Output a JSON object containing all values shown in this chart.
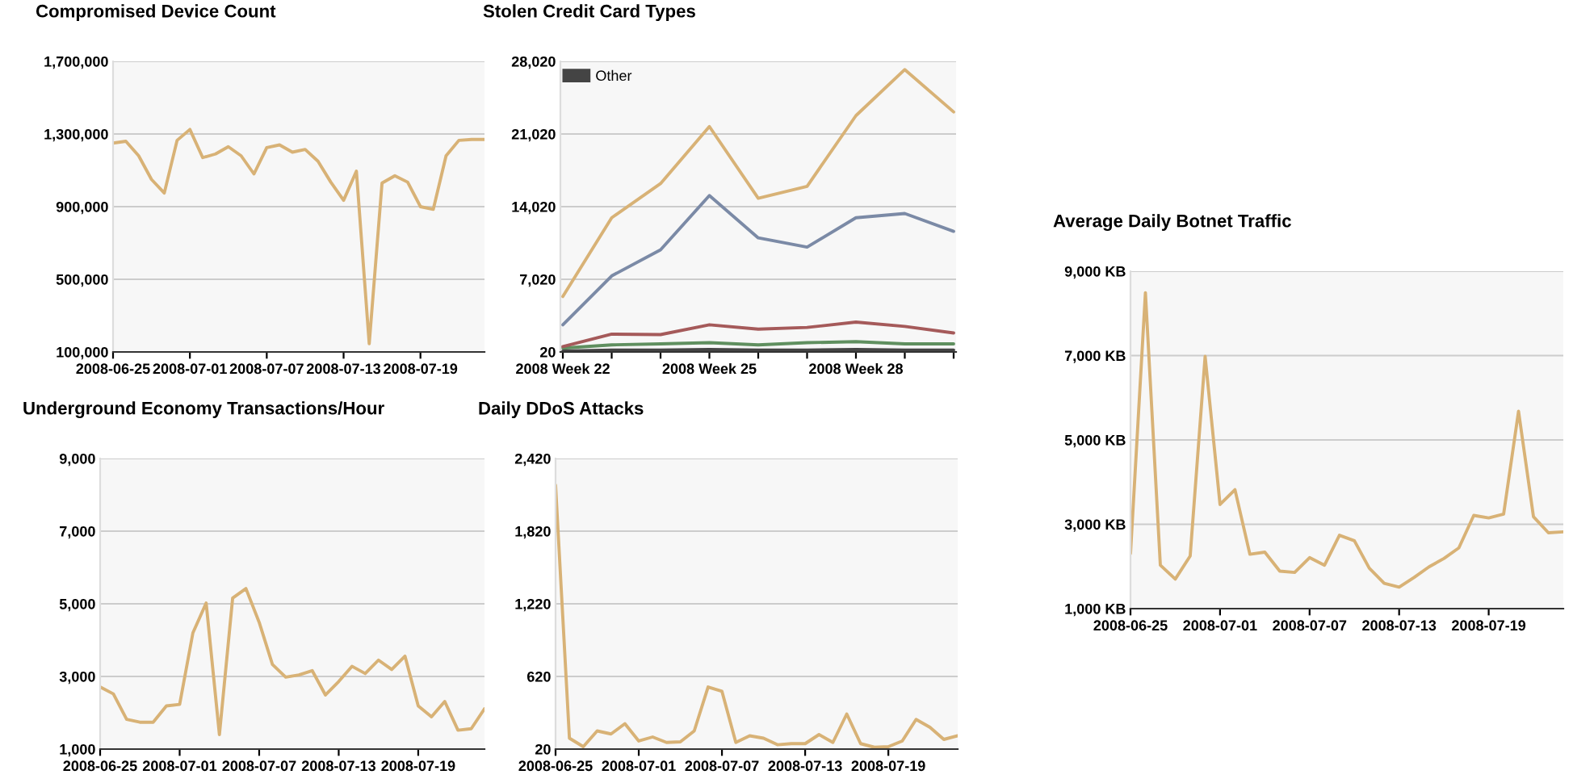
{
  "chart_data": [
    {
      "type": "line",
      "title": "Compromised Device Count",
      "x": [
        "2008-06-25",
        "2008-06-26",
        "2008-06-27",
        "2008-06-28",
        "2008-06-29",
        "2008-06-30",
        "2008-07-01",
        "2008-07-02",
        "2008-07-03",
        "2008-07-04",
        "2008-07-05",
        "2008-07-06",
        "2008-07-07",
        "2008-07-08",
        "2008-07-09",
        "2008-07-10",
        "2008-07-11",
        "2008-07-12",
        "2008-07-13",
        "2008-07-14",
        "2008-07-15",
        "2008-07-16",
        "2008-07-17",
        "2008-07-18",
        "2008-07-19",
        "2008-07-20",
        "2008-07-21",
        "2008-07-22",
        "2008-07-23",
        "2008-07-24"
      ],
      "series": [
        {
          "color": "#d8b276",
          "values": [
            1250000,
            1260000,
            1180000,
            1050000,
            975000,
            1265000,
            1325000,
            1170000,
            1190000,
            1230000,
            1180000,
            1080000,
            1225000,
            1240000,
            1200000,
            1215000,
            1150000,
            1035000,
            935000,
            1095000,
            145000,
            1030000,
            1070000,
            1035000,
            900000,
            885000,
            1180000,
            1265000,
            1270000,
            1270000
          ]
        }
      ],
      "xlim": [
        "2008-06-25",
        "2008-07-24"
      ],
      "xticks": [
        {
          "value": "2008-06-25",
          "label": "2008-06-25"
        },
        {
          "value": "2008-07-01",
          "label": "2008-07-01"
        },
        {
          "value": "2008-07-07",
          "label": "2008-07-07"
        },
        {
          "value": "2008-07-13",
          "label": "2008-07-13"
        },
        {
          "value": "2008-07-19",
          "label": "2008-07-19"
        }
      ],
      "ylim": [
        100000,
        1700000
      ],
      "yticks": [
        {
          "value": 100000,
          "label": "100,000"
        },
        {
          "value": 500000,
          "label": "500,000"
        },
        {
          "value": 900000,
          "label": "900,000"
        },
        {
          "value": 1300000,
          "label": "1,300,000"
        },
        {
          "value": 1700000,
          "label": "1,700,000"
        }
      ],
      "grid": "y",
      "legend": false
    },
    {
      "type": "line",
      "title": "Stolen Credit Card Types",
      "categories": [
        "2008 Week 22",
        null,
        null,
        "2008 Week 25",
        null,
        null,
        "2008 Week 28",
        null,
        null
      ],
      "series": [
        {
          "color": "#d8b276",
          "values": [
            5360,
            12950,
            16240,
            21740,
            14830,
            15980,
            22790,
            27230,
            23150
          ]
        },
        {
          "color": "#7b8aa6",
          "values": [
            2640,
            7350,
            9860,
            15090,
            11010,
            10120,
            12950,
            13360,
            11640
          ]
        },
        {
          "color": "#5f8f5f",
          "values": [
            390,
            700,
            800,
            910,
            700,
            910,
            1010,
            800,
            800
          ]
        },
        {
          "color": "#a55a5a",
          "values": [
            540,
            1740,
            1690,
            2640,
            2220,
            2380,
            2900,
            2480,
            1850
          ]
        },
        {
          "name": "Other",
          "color": "#444444",
          "values": [
            100,
            200,
            200,
            250,
            200,
            200,
            250,
            200,
            200
          ]
        }
      ],
      "ylim": [
        20,
        28020
      ],
      "yticks": [
        {
          "value": 20,
          "label": "20"
        },
        {
          "value": 7020,
          "label": "7,020"
        },
        {
          "value": 14020,
          "label": "14,020"
        },
        {
          "value": 21020,
          "label": "21,020"
        },
        {
          "value": 28020,
          "label": "28,020"
        }
      ],
      "grid": "y",
      "legend": "top left"
    },
    {
      "type": "line",
      "title": "Underground Economy Transactions/Hour",
      "x": [
        "2008-06-25",
        "2008-06-26",
        "2008-06-27",
        "2008-06-28",
        "2008-06-29",
        "2008-06-30",
        "2008-07-01",
        "2008-07-02",
        "2008-07-03",
        "2008-07-04",
        "2008-07-05",
        "2008-07-06",
        "2008-07-07",
        "2008-07-08",
        "2008-07-09",
        "2008-07-10",
        "2008-07-11",
        "2008-07-12",
        "2008-07-13",
        "2008-07-14",
        "2008-07-15",
        "2008-07-16",
        "2008-07-17",
        "2008-07-18",
        "2008-07-19",
        "2008-07-20",
        "2008-07-21",
        "2008-07-22",
        "2008-07-23",
        "2008-07-24"
      ],
      "series": [
        {
          "color": "#d8b276",
          "values": [
            2710,
            2520,
            1820,
            1740,
            1740,
            2190,
            2230,
            4200,
            5020,
            1400,
            5160,
            5420,
            4490,
            3330,
            2980,
            3040,
            3160,
            2490,
            2860,
            3280,
            3080,
            3450,
            3190,
            3560,
            2190,
            1890,
            2310,
            1520,
            1560,
            2110
          ]
        }
      ],
      "xlim": [
        "2008-06-25",
        "2008-07-24"
      ],
      "xticks": [
        {
          "value": "2008-06-25",
          "label": "2008-06-25"
        },
        {
          "value": "2008-07-01",
          "label": "2008-07-01"
        },
        {
          "value": "2008-07-07",
          "label": "2008-07-07"
        },
        {
          "value": "2008-07-13",
          "label": "2008-07-13"
        },
        {
          "value": "2008-07-19",
          "label": "2008-07-19"
        }
      ],
      "ylim": [
        1000,
        9000
      ],
      "yticks": [
        {
          "value": 1000,
          "label": "1,000"
        },
        {
          "value": 3000,
          "label": "3,000"
        },
        {
          "value": 5000,
          "label": "5,000"
        },
        {
          "value": 7000,
          "label": "7,000"
        },
        {
          "value": 9000,
          "label": "9,000"
        }
      ],
      "grid": "y",
      "legend": false
    },
    {
      "type": "line",
      "title": "Daily DDoS Attacks",
      "x": [
        "2008-06-25",
        "2008-06-26",
        "2008-06-27",
        "2008-06-28",
        "2008-06-29",
        "2008-06-30",
        "2008-07-01",
        "2008-07-02",
        "2008-07-03",
        "2008-07-04",
        "2008-07-05",
        "2008-07-06",
        "2008-07-07",
        "2008-07-08",
        "2008-07-09",
        "2008-07-10",
        "2008-07-11",
        "2008-07-12",
        "2008-07-13",
        "2008-07-14",
        "2008-07-15",
        "2008-07-16",
        "2008-07-17",
        "2008-07-18",
        "2008-07-19",
        "2008-07-20",
        "2008-07-21",
        "2008-07-22",
        "2008-07-23",
        "2008-07-24"
      ],
      "series": [
        {
          "color": "#d8b276",
          "values": [
            2200,
            110,
            40,
            170,
            145,
            230,
            87,
            120,
            75,
            80,
            170,
            533,
            497,
            75,
            130,
            110,
            56,
            65,
            65,
            140,
            75,
            310,
            65,
            35,
            40,
            87,
            265,
            200,
            100,
            130
          ]
        }
      ],
      "xlim": [
        "2008-06-25",
        "2008-07-24"
      ],
      "xticks": [
        {
          "value": "2008-06-25",
          "label": "2008-06-25"
        },
        {
          "value": "2008-07-01",
          "label": "2008-07-01"
        },
        {
          "value": "2008-07-07",
          "label": "2008-07-07"
        },
        {
          "value": "2008-07-13",
          "label": "2008-07-13"
        },
        {
          "value": "2008-07-19",
          "label": "2008-07-19"
        }
      ],
      "ylim": [
        20,
        2420
      ],
      "yticks": [
        {
          "value": 20,
          "label": "20"
        },
        {
          "value": 620,
          "label": "620"
        },
        {
          "value": 1220,
          "label": "1,220"
        },
        {
          "value": 1820,
          "label": "1,820"
        },
        {
          "value": 2420,
          "label": "2,420"
        }
      ],
      "grid": "y",
      "legend": false
    },
    {
      "type": "line",
      "title": "Average Daily Botnet Traffic",
      "x": [
        "2008-06-25",
        "2008-06-26",
        "2008-06-27",
        "2008-06-28",
        "2008-06-29",
        "2008-06-30",
        "2008-07-01",
        "2008-07-02",
        "2008-07-03",
        "2008-07-04",
        "2008-07-05",
        "2008-07-06",
        "2008-07-07",
        "2008-07-08",
        "2008-07-09",
        "2008-07-10",
        "2008-07-11",
        "2008-07-12",
        "2008-07-13",
        "2008-07-14",
        "2008-07-15",
        "2008-07-16",
        "2008-07-17",
        "2008-07-18",
        "2008-07-19",
        "2008-07-20",
        "2008-07-21",
        "2008-07-22",
        "2008-07-23",
        "2008-07-24"
      ],
      "series": [
        {
          "color": "#d8b276",
          "values": [
            2310,
            8490,
            2030,
            1700,
            2250,
            6980,
            3470,
            3820,
            2290,
            2340,
            1890,
            1860,
            2210,
            2030,
            2740,
            2610,
            1960,
            1600,
            1510,
            1740,
            1990,
            2190,
            2440,
            3210,
            3150,
            3240,
            5680,
            3180,
            2800,
            2820
          ]
        }
      ],
      "xlim": [
        "2008-06-25",
        "2008-07-24"
      ],
      "xticks": [
        {
          "value": "2008-06-25",
          "label": "2008-06-25"
        },
        {
          "value": "2008-07-01",
          "label": "2008-07-01"
        },
        {
          "value": "2008-07-07",
          "label": "2008-07-07"
        },
        {
          "value": "2008-07-13",
          "label": "2008-07-13"
        },
        {
          "value": "2008-07-19",
          "label": "2008-07-19"
        }
      ],
      "ylim": [
        1000,
        9000
      ],
      "yticks": [
        {
          "value": 1000,
          "label": "1,000 KB"
        },
        {
          "value": 3000,
          "label": "3,000 KB"
        },
        {
          "value": 5000,
          "label": "5,000 KB"
        },
        {
          "value": 7000,
          "label": "7,000 KB"
        },
        {
          "value": 9000,
          "label": "9,000 KB"
        }
      ],
      "grid": "y",
      "legend": false
    }
  ]
}
